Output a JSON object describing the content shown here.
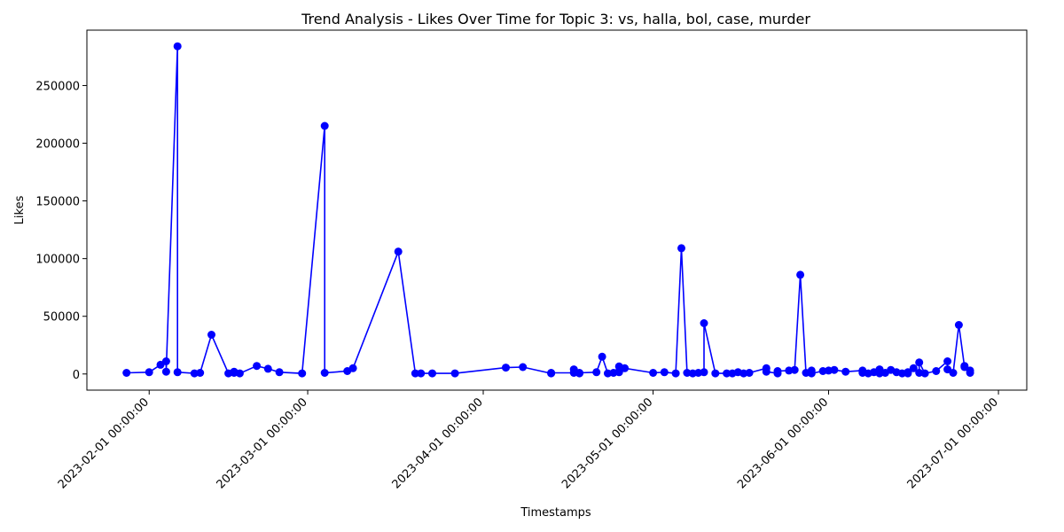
{
  "chart_data": {
    "type": "line",
    "title": "Trend Analysis - Likes Over Time for Topic 3: vs, halla, bol, case, murder",
    "xlabel": "Timestamps",
    "ylabel": "Likes",
    "x_axis_kind": "datetime",
    "xlim": [
      "2023-01-21",
      "2023-07-06"
    ],
    "ylim": [
      -14000,
      298000
    ],
    "x_ticks": [
      {
        "date": "2023-02-01",
        "label": "2023-02-01 00:00:00"
      },
      {
        "date": "2023-03-01",
        "label": "2023-03-01 00:00:00"
      },
      {
        "date": "2023-04-01",
        "label": "2023-04-01 00:00:00"
      },
      {
        "date": "2023-05-01",
        "label": "2023-05-01 00:00:00"
      },
      {
        "date": "2023-06-01",
        "label": "2023-06-01 00:00:00"
      },
      {
        "date": "2023-07-01",
        "label": "2023-07-01 00:00:00"
      }
    ],
    "y_ticks": [
      0,
      50000,
      100000,
      150000,
      200000,
      250000
    ],
    "grid": false,
    "color": "#0000ff",
    "marker": "circle",
    "series": [
      {
        "x": [
          "2023-01-28",
          "2023-02-01",
          "2023-02-03",
          "2023-02-04",
          "2023-02-04",
          "2023-02-06",
          "2023-02-06",
          "2023-02-09",
          "2023-02-10",
          "2023-02-12",
          "2023-02-15",
          "2023-02-16",
          "2023-02-16",
          "2023-02-17",
          "2023-02-20",
          "2023-02-22",
          "2023-02-24",
          "2023-02-28",
          "2023-03-04",
          "2023-03-04",
          "2023-03-08",
          "2023-03-09",
          "2023-03-17",
          "2023-03-20",
          "2023-03-21",
          "2023-03-23",
          "2023-03-27",
          "2023-04-05",
          "2023-04-08",
          "2023-04-13",
          "2023-04-13",
          "2023-04-17",
          "2023-04-17",
          "2023-04-18",
          "2023-04-18",
          "2023-04-21",
          "2023-04-22",
          "2023-04-23",
          "2023-04-24",
          "2023-04-25",
          "2023-04-25",
          "2023-04-26",
          "2023-05-01",
          "2023-05-03",
          "2023-05-05",
          "2023-05-06",
          "2023-05-07",
          "2023-05-08",
          "2023-05-09",
          "2023-05-10",
          "2023-05-10",
          "2023-05-12",
          "2023-05-14",
          "2023-05-15",
          "2023-05-16",
          "2023-05-17",
          "2023-05-18",
          "2023-05-21",
          "2023-05-21",
          "2023-05-23",
          "2023-05-23",
          "2023-05-25",
          "2023-05-26",
          "2023-05-27",
          "2023-05-28",
          "2023-05-29",
          "2023-05-29",
          "2023-05-31",
          "2023-06-01",
          "2023-06-02",
          "2023-06-04",
          "2023-06-07",
          "2023-06-07",
          "2023-06-08",
          "2023-06-09",
          "2023-06-10",
          "2023-06-10",
          "2023-06-11",
          "2023-06-12",
          "2023-06-13",
          "2023-06-14",
          "2023-06-15",
          "2023-06-15",
          "2023-06-16",
          "2023-06-17",
          "2023-06-17",
          "2023-06-18",
          "2023-06-20",
          "2023-06-22",
          "2023-06-22",
          "2023-06-23",
          "2023-06-24",
          "2023-06-25",
          "2023-06-25",
          "2023-06-26",
          "2023-06-26"
        ],
        "y": [
          1000,
          1500,
          8000,
          11000,
          2000,
          284000,
          1500,
          500,
          1000,
          34000,
          500,
          2000,
          1000,
          500,
          7000,
          4500,
          1500,
          500,
          215000,
          1000,
          2500,
          5000,
          106000,
          500,
          500,
          500,
          500,
          5500,
          6000,
          500,
          1000,
          1000,
          4000,
          500,
          1000,
          1500,
          15000,
          500,
          1000,
          6500,
          1500,
          5000,
          1000,
          1500,
          500,
          109000,
          1000,
          500,
          1000,
          1500,
          44000,
          500,
          500,
          500,
          1500,
          500,
          1000,
          5000,
          2000,
          500,
          2500,
          3000,
          3500,
          86000,
          1000,
          3000,
          500,
          2500,
          3000,
          3500,
          2000,
          3000,
          1000,
          500,
          1500,
          4000,
          500,
          1000,
          3500,
          1500,
          500,
          1500,
          500,
          5000,
          1000,
          10000,
          500,
          2500,
          11000,
          4000,
          1000,
          42500,
          6000,
          7000,
          1000,
          3000
        ]
      }
    ]
  }
}
